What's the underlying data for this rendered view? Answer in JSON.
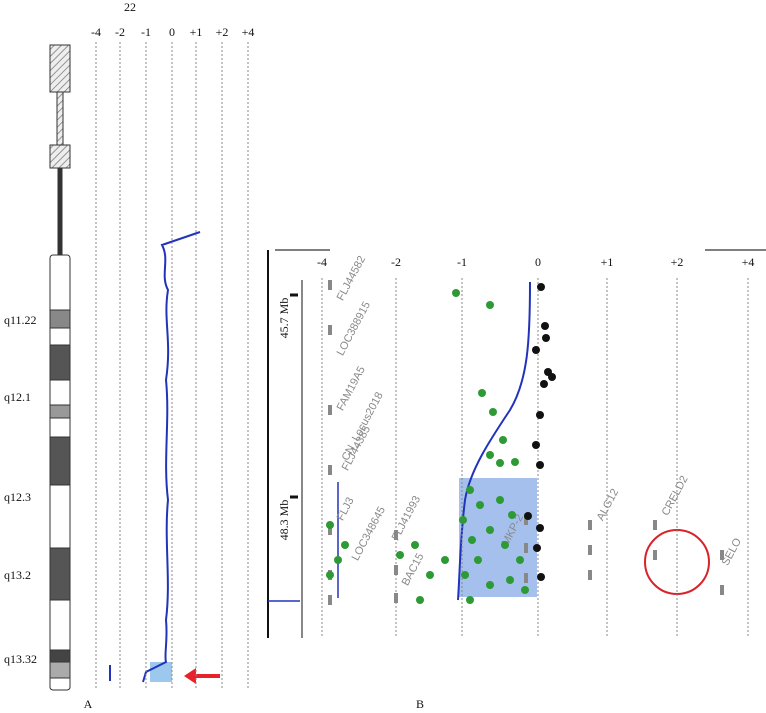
{
  "panel_a": {
    "chromosome": "22",
    "ticks": [
      "-4",
      "-2",
      "-1",
      "0",
      "+1",
      "+2",
      "+4"
    ],
    "bands": [
      "q11.22",
      "q12.1",
      "q12.3",
      "q13.2",
      "q13.32"
    ],
    "label": "A"
  },
  "panel_b": {
    "ticks": [
      "-4",
      "-2",
      "-1",
      "0",
      "+1",
      "+2",
      "+4"
    ],
    "positions": [
      "45.7 Mb",
      "48.3 Mb"
    ],
    "genes": [
      "FLJ44582",
      "LOC388915",
      "FAM19A5",
      "CN_Locus2018",
      "FLJ44385",
      "FLJ3",
      "LOC348645",
      "FLJ41993",
      "BAC15",
      "MKP-2",
      "ALG12",
      "CRELD2",
      "SELO"
    ],
    "label": "B"
  }
}
